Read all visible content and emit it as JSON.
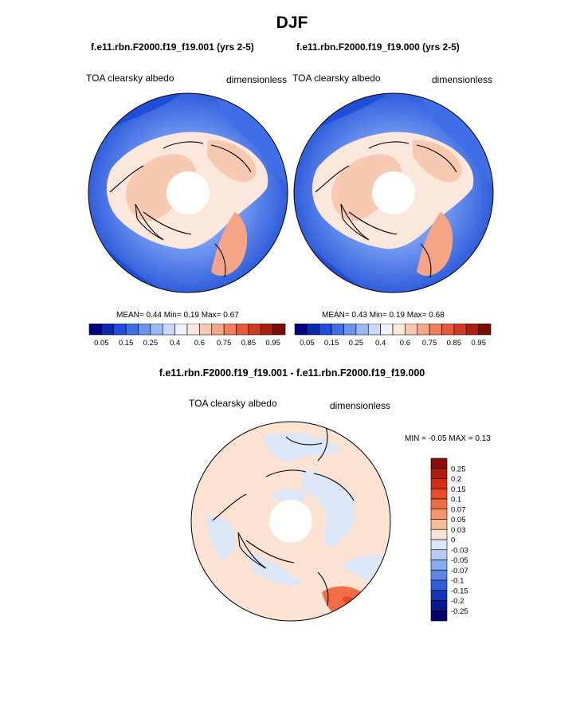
{
  "figure": {
    "title": "DJF",
    "subtitle_left": "f.e11.rbn.F2000.f19_f19.001 (yrs 2-5)",
    "subtitle_right": "f.e11.rbn.F2000.f19_f19.000 (yrs 2-5)",
    "diff_title": "f.e11.rbn.F2000.f19_f19.001 - f.e11.rbn.F2000.f19_f19.000"
  },
  "panels": [
    {
      "id": "left",
      "var_label": "TOA clearsky albedo",
      "units": "dimensionless",
      "stats": "MEAN=   0.44  Min=   0.19  Max=   0.67"
    },
    {
      "id": "right",
      "var_label": "TOA clearsky albedo",
      "units": "dimensionless",
      "stats": "MEAN=   0.43  Min=   0.19  Max=   0.68"
    },
    {
      "id": "diff",
      "var_label": "TOA clearsky albedo",
      "units": "dimensionless",
      "stats": "MIN =  -0.05 MAX =   0.13"
    }
  ],
  "colorbar_abs": {
    "tick_labels": [
      "0.05",
      "0.15",
      "0.25",
      "0.4",
      "0.6",
      "0.75",
      "0.85",
      "0.95"
    ],
    "colors": [
      "#03037f",
      "#0a2ab0",
      "#1f4fd8",
      "#3f6fe8",
      "#6b93ef",
      "#9bb8f4",
      "#c9daf8",
      "#eef2fb",
      "#fbe7dc",
      "#f8c9b1",
      "#f4a586",
      "#ef7f5c",
      "#e65a3a",
      "#cf3a22",
      "#a8200f",
      "#7a0d05"
    ]
  },
  "colorbar_diff": {
    "tick_labels": [
      "0.25",
      "0.2",
      "0.15",
      "0.1",
      "0.07",
      "0.05",
      "0.03",
      "0",
      "-0.03",
      "-0.05",
      "-0.07",
      "-0.1",
      "-0.15",
      "-0.2",
      "-0.25"
    ],
    "colors": [
      "#8a0c05",
      "#b3190d",
      "#d42c17",
      "#e84a2a",
      "#f26d47",
      "#f7956e",
      "#f9bb9a",
      "#fbe2d3",
      "#dbe7f8",
      "#b5cdf3",
      "#86abee",
      "#5a86e6",
      "#2f5ddb",
      "#1233b8",
      "#061a92",
      "#02046a"
    ]
  },
  "colors": {
    "ocean_deep": "#1f4fd8",
    "ocean_mid": "#4a7ce6",
    "ocean_light": "#9bb8f4",
    "land_warm": "#f5c7b0",
    "land_pale": "#fbe7dc",
    "pole_missing": "#ffffff",
    "diff_base": "#fbe2d3",
    "diff_neg": "#dbe7f8",
    "diff_pos": "#f26d47"
  }
}
